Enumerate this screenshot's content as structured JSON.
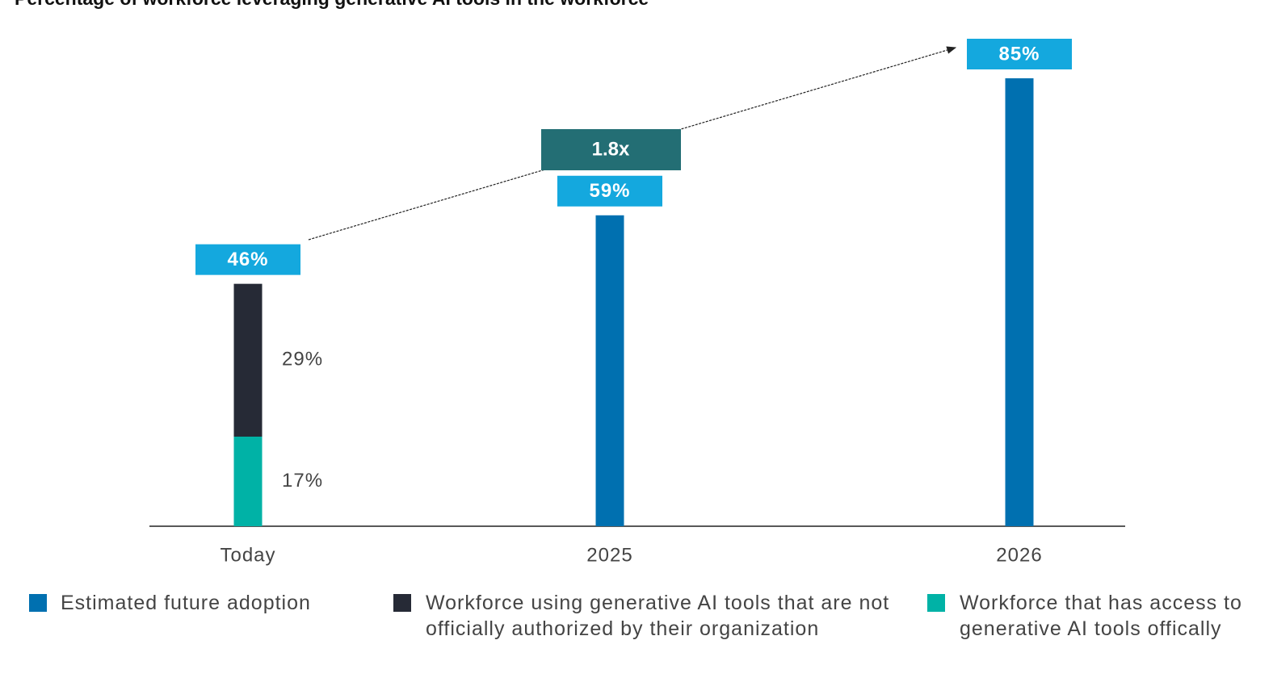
{
  "chart_data": {
    "type": "bar",
    "stacked": true,
    "title": "Percentage of workforce leveraging generative AI tools in the workforce",
    "categories": [
      "Today",
      "2025",
      "2026"
    ],
    "series": [
      {
        "name": "Workforce that has access to generative AI tools offically",
        "color": "#00b2a6",
        "values": [
          17,
          null,
          null
        ],
        "value_labels": [
          "17%",
          null,
          null
        ]
      },
      {
        "name": "Workforce using generative AI tools that are not officially authorized by their organization",
        "color": "#262a36",
        "values": [
          29,
          null,
          null
        ],
        "value_labels": [
          "29%",
          null,
          null
        ]
      },
      {
        "name": "Estimated future adoption",
        "color": "#0070b0",
        "values": [
          null,
          59,
          85
        ]
      }
    ],
    "legend_order": [
      2,
      1,
      0
    ],
    "totals": [
      46,
      59,
      85
    ],
    "total_labels": [
      "46%",
      "59%",
      "85%"
    ],
    "total_label_color": "#14a8de",
    "annotation": "1.8x",
    "annotation_color": "#236e74",
    "ylim": [
      0,
      85
    ]
  }
}
